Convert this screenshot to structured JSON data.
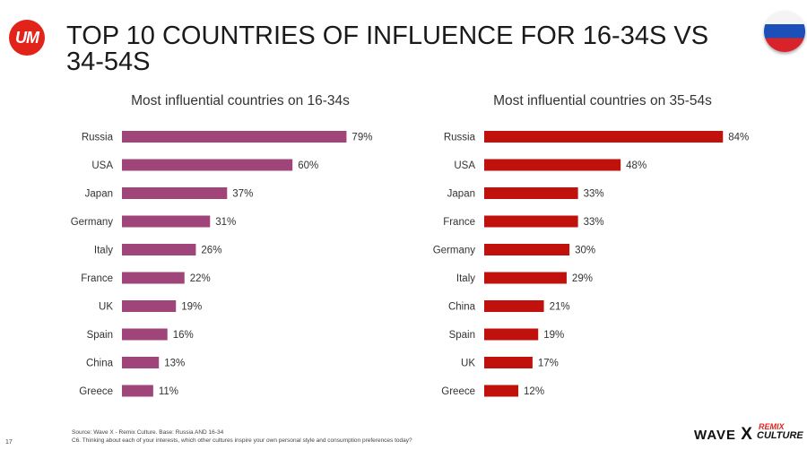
{
  "header": {
    "logo_text": "UM",
    "title": "TOP 10 COUNTRIES OF INFLUENCE FOR 16-34S VS 34-54S"
  },
  "colors": {
    "left_bar": "#a0457a",
    "right_bar": "#c0110d",
    "um_red": "#e2231a"
  },
  "chart_data": [
    {
      "type": "bar",
      "orientation": "horizontal",
      "title": "Most influential countries on 16-34s",
      "categories": [
        "Russia",
        "USA",
        "Japan",
        "Germany",
        "Italy",
        "France",
        "UK",
        "Spain",
        "China",
        "Greece"
      ],
      "values": [
        79,
        60,
        37,
        31,
        26,
        22,
        19,
        16,
        13,
        11
      ],
      "value_suffix": "%",
      "xlim": [
        0,
        100
      ]
    },
    {
      "type": "bar",
      "orientation": "horizontal",
      "title": "Most influential countries on 35-54s",
      "categories": [
        "Russia",
        "USA",
        "Japan",
        "France",
        "Germany",
        "Italy",
        "China",
        "Spain",
        "UK",
        "Greece"
      ],
      "values": [
        84,
        48,
        33,
        33,
        30,
        29,
        21,
        19,
        17,
        12
      ],
      "value_suffix": "%",
      "xlim": [
        0,
        100
      ]
    }
  ],
  "footer": {
    "source_line": "Source: Wave X - Remix Culture. Base:       Russia AND 16-34",
    "question_line": "C6. Thinking about each of your interests, which other cultures inspire your own personal style and consumption preferences today?",
    "page_number": "17",
    "brand_wave": "WAVE",
    "brand_x": "X",
    "brand_remix": "REMIX",
    "brand_culture": "CULTURE"
  }
}
